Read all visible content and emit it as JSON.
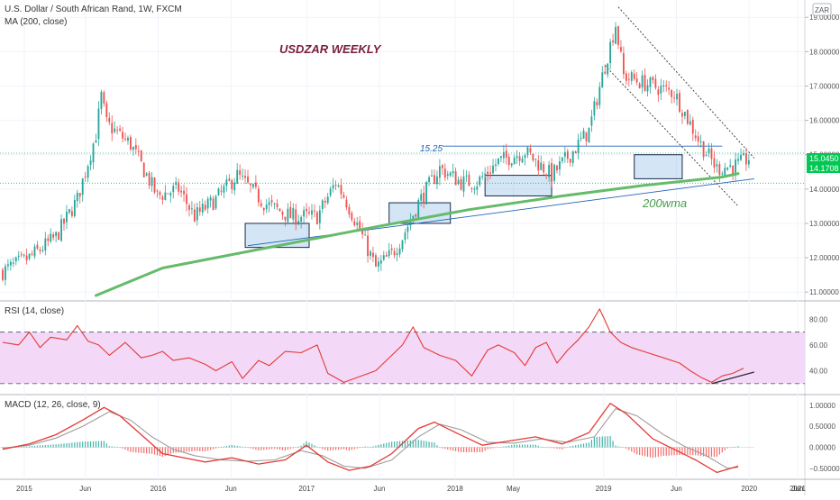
{
  "header": {
    "symbol_title": "U.S. Dollar / South African Rand, 1W, FXCM",
    "ma_label": "MA (200, close)",
    "currency_badge": "ZAR"
  },
  "annotations": {
    "chart_title": "USDZAR WEEKLY",
    "level_label": "15.25",
    "wma_label": "200wma"
  },
  "price_badges": {
    "upper": "15.0450",
    "lower": "14.1708"
  },
  "colors": {
    "up_candle": "#26a69a",
    "down_candle": "#ef5350",
    "ma": "#66bb6a",
    "rsi_line": "#e53935",
    "rsi_band": "#f3d9f7",
    "macd_line": "#e53935",
    "signal_line": "#9e9e9e",
    "trendline": "#1e63b8",
    "title_text": "#7b1e3a",
    "badge_green": "#00c853"
  },
  "chart_data": [
    {
      "type": "candlestick",
      "title": "U.S. Dollar / South African Rand, 1W, FXCM",
      "y_ticks": [
        "19.00000",
        "18.00000",
        "17.00000",
        "16.00000",
        "15.00000",
        "14.00000",
        "13.00000",
        "12.00000",
        "11.00000"
      ],
      "ylim": [
        10.9,
        19.4
      ],
      "x_ticks": [
        "2015",
        "Jun",
        "2016",
        "Jun",
        "2017",
        "Jun",
        "2018",
        "May",
        "2019",
        "Jun",
        "2020",
        "Jun",
        "2021",
        "Jun"
      ],
      "close_path": [
        [
          0,
          11.6
        ],
        [
          10,
          12.0
        ],
        [
          20,
          12.6
        ],
        [
          28,
          13.7
        ],
        [
          35,
          15.6
        ],
        [
          37,
          16.7
        ],
        [
          39,
          15.9
        ],
        [
          48,
          15.3
        ],
        [
          58,
          13.8
        ],
        [
          66,
          14.0
        ],
        [
          72,
          13.2
        ],
        [
          80,
          13.7
        ],
        [
          88,
          14.4
        ],
        [
          98,
          13.6
        ],
        [
          108,
          13.2
        ],
        [
          118,
          13.2
        ],
        [
          125,
          14.2
        ],
        [
          128,
          13.8
        ],
        [
          134,
          12.8
        ],
        [
          140,
          11.7
        ],
        [
          146,
          12.1
        ],
        [
          150,
          12.6
        ],
        [
          156,
          13.6
        ],
        [
          164,
          14.6
        ],
        [
          172,
          14.2
        ],
        [
          178,
          14.2
        ],
        [
          186,
          14.8
        ],
        [
          196,
          15.1
        ],
        [
          206,
          14.4
        ],
        [
          214,
          15.1
        ],
        [
          220,
          15.7
        ],
        [
          226,
          17.6
        ],
        [
          230,
          18.8
        ],
        [
          233,
          17.3
        ],
        [
          240,
          17.1
        ],
        [
          252,
          16.8
        ],
        [
          262,
          15.3
        ],
        [
          268,
          14.6
        ],
        [
          276,
          14.7
        ],
        [
          280,
          14.9
        ]
      ],
      "moving_average": {
        "name": "MA (200, close)",
        "path": [
          [
            35,
            10.9
          ],
          [
            60,
            11.7
          ],
          [
            100,
            12.3
          ],
          [
            140,
            12.9
          ],
          [
            175,
            13.4
          ],
          [
            210,
            13.8
          ],
          [
            240,
            14.1
          ],
          [
            270,
            14.35
          ],
          [
            276,
            14.45
          ]
        ]
      },
      "horizontal_level": 15.25,
      "last_price_values": [
        15.045,
        14.1708
      ],
      "highlighted_ranges": [
        {
          "x": [
            91,
            115
          ],
          "y": [
            12.3,
            13.0
          ]
        },
        {
          "x": [
            145,
            168
          ],
          "y": [
            13.0,
            13.6
          ]
        },
        {
          "x": [
            181,
            206
          ],
          "y": [
            13.8,
            14.4
          ]
        },
        {
          "x": [
            237,
            255
          ],
          "y": [
            14.3,
            15.0
          ]
        }
      ]
    },
    {
      "type": "line",
      "title": "RSI (14, close)",
      "y_ticks": [
        "80.00",
        "60.00",
        "40.00"
      ],
      "ylim": [
        25,
        90
      ],
      "band": [
        30,
        70
      ],
      "series": [
        {
          "name": "RSI",
          "points": [
            [
              0,
              62
            ],
            [
              6,
              60
            ],
            [
              10,
              70
            ],
            [
              14,
              58
            ],
            [
              18,
              66
            ],
            [
              24,
              64
            ],
            [
              28,
              75
            ],
            [
              32,
              63
            ],
            [
              36,
              60
            ],
            [
              40,
              52
            ],
            [
              46,
              62
            ],
            [
              52,
              50
            ],
            [
              56,
              52
            ],
            [
              60,
              55
            ],
            [
              64,
              48
            ],
            [
              70,
              50
            ],
            [
              76,
              45
            ],
            [
              80,
              40
            ],
            [
              86,
              47
            ],
            [
              90,
              34
            ],
            [
              96,
              48
            ],
            [
              100,
              44
            ],
            [
              106,
              55
            ],
            [
              112,
              54
            ],
            [
              118,
              60
            ],
            [
              122,
              38
            ],
            [
              128,
              31
            ],
            [
              132,
              34
            ],
            [
              140,
              40
            ],
            [
              146,
              52
            ],
            [
              150,
              60
            ],
            [
              154,
              74
            ],
            [
              158,
              58
            ],
            [
              164,
              52
            ],
            [
              170,
              48
            ],
            [
              176,
              36
            ],
            [
              182,
              56
            ],
            [
              186,
              60
            ],
            [
              192,
              54
            ],
            [
              196,
              44
            ],
            [
              200,
              58
            ],
            [
              204,
              62
            ],
            [
              208,
              46
            ],
            [
              212,
              56
            ],
            [
              216,
              64
            ],
            [
              220,
              74
            ],
            [
              224,
              88
            ],
            [
              228,
              70
            ],
            [
              232,
              62
            ],
            [
              236,
              58
            ],
            [
              242,
              54
            ],
            [
              248,
              50
            ],
            [
              254,
              46
            ],
            [
              258,
              40
            ],
            [
              262,
              35
            ],
            [
              266,
              31
            ],
            [
              270,
              36
            ],
            [
              274,
              38
            ],
            [
              278,
              42
            ]
          ]
        }
      ]
    },
    {
      "type": "line",
      "title": "MACD (12, 26, close, 9)",
      "y_ticks": [
        "1.00000",
        "0.50000",
        "0.00000",
        "−0.50000"
      ],
      "ylim": [
        -0.72,
        1.15
      ],
      "series": [
        {
          "name": "MACD",
          "points": [
            [
              0,
              -0.05
            ],
            [
              10,
              0.08
            ],
            [
              20,
              0.3
            ],
            [
              30,
              0.65
            ],
            [
              38,
              0.95
            ],
            [
              44,
              0.75
            ],
            [
              52,
              0.3
            ],
            [
              60,
              -0.15
            ],
            [
              68,
              -0.25
            ],
            [
              76,
              -0.35
            ],
            [
              86,
              -0.25
            ],
            [
              96,
              -0.4
            ],
            [
              106,
              -0.3
            ],
            [
              114,
              0.05
            ],
            [
              122,
              -0.35
            ],
            [
              130,
              -0.55
            ],
            [
              138,
              -0.45
            ],
            [
              146,
              -0.15
            ],
            [
              156,
              0.45
            ],
            [
              162,
              0.6
            ],
            [
              170,
              0.35
            ],
            [
              180,
              0.05
            ],
            [
              190,
              0.15
            ],
            [
              200,
              0.25
            ],
            [
              210,
              0.08
            ],
            [
              220,
              0.35
            ],
            [
              228,
              1.05
            ],
            [
              234,
              0.8
            ],
            [
              244,
              0.2
            ],
            [
              252,
              -0.05
            ],
            [
              260,
              -0.3
            ],
            [
              268,
              -0.6
            ],
            [
              276,
              -0.45
            ]
          ]
        },
        {
          "name": "Signal",
          "points": [
            [
              0,
              -0.02
            ],
            [
              10,
              0.05
            ],
            [
              20,
              0.22
            ],
            [
              30,
              0.5
            ],
            [
              40,
              0.85
            ],
            [
              48,
              0.65
            ],
            [
              56,
              0.25
            ],
            [
              64,
              -0.05
            ],
            [
              72,
              -0.2
            ],
            [
              82,
              -0.3
            ],
            [
              92,
              -0.33
            ],
            [
              102,
              -0.3
            ],
            [
              112,
              -0.08
            ],
            [
              120,
              -0.2
            ],
            [
              128,
              -0.45
            ],
            [
              136,
              -0.5
            ],
            [
              146,
              -0.3
            ],
            [
              156,
              0.25
            ],
            [
              164,
              0.55
            ],
            [
              172,
              0.42
            ],
            [
              182,
              0.12
            ],
            [
              192,
              0.1
            ],
            [
              202,
              0.2
            ],
            [
              212,
              0.12
            ],
            [
              222,
              0.25
            ],
            [
              230,
              0.92
            ],
            [
              238,
              0.75
            ],
            [
              248,
              0.3
            ],
            [
              256,
              0.02
            ],
            [
              264,
              -0.2
            ],
            [
              272,
              -0.5
            ],
            [
              276,
              -0.48
            ]
          ]
        }
      ]
    }
  ]
}
